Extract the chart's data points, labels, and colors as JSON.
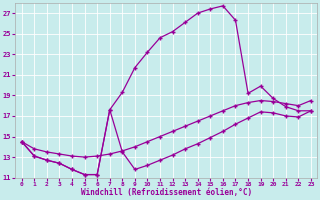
{
  "xlabel": "Windchill (Refroidissement éolien,°C)",
  "background_color": "#c8ecec",
  "line_color": "#990099",
  "xlim": [
    -0.5,
    23.5
  ],
  "ylim": [
    11,
    28
  ],
  "yticks": [
    11,
    13,
    15,
    17,
    19,
    21,
    23,
    25,
    27
  ],
  "xticks": [
    0,
    1,
    2,
    3,
    4,
    5,
    6,
    7,
    8,
    9,
    10,
    11,
    12,
    13,
    14,
    15,
    16,
    17,
    18,
    19,
    20,
    21,
    22,
    23
  ],
  "curve_peak_x": [
    0,
    1,
    2,
    3,
    4,
    5,
    6,
    7,
    8,
    9,
    10,
    11,
    12,
    13,
    14,
    15,
    16,
    17,
    18,
    19,
    20,
    21,
    22,
    23
  ],
  "curve_peak_y": [
    14.5,
    13.1,
    12.7,
    12.4,
    11.8,
    11.3,
    11.3,
    17.6,
    19.3,
    21.7,
    23.2,
    24.6,
    25.2,
    26.1,
    27.0,
    27.4,
    27.7,
    26.3,
    19.2,
    19.9,
    18.7,
    17.9,
    17.5,
    17.5
  ],
  "curve_upper_x": [
    0,
    1,
    2,
    3,
    4,
    5,
    6,
    7,
    8,
    9,
    10,
    11,
    12,
    13,
    14,
    15,
    16,
    17,
    18,
    19,
    20,
    21,
    22,
    23
  ],
  "curve_upper_y": [
    14.5,
    13.8,
    13.5,
    13.3,
    13.1,
    13.0,
    13.1,
    13.3,
    13.6,
    14.0,
    14.5,
    15.0,
    15.5,
    16.0,
    16.5,
    17.0,
    17.5,
    18.0,
    18.3,
    18.5,
    18.4,
    18.2,
    18.0,
    18.5
  ],
  "curve_lower_x": [
    0,
    1,
    2,
    3,
    4,
    5,
    6,
    7,
    8,
    9,
    10,
    11,
    12,
    13,
    14,
    15,
    16,
    17,
    18,
    19,
    20,
    21,
    22,
    23
  ],
  "curve_lower_y": [
    14.5,
    13.1,
    12.7,
    12.4,
    11.8,
    11.3,
    11.3,
    17.6,
    13.5,
    11.8,
    12.2,
    12.7,
    13.2,
    13.8,
    14.3,
    14.9,
    15.5,
    16.2,
    16.8,
    17.4,
    17.3,
    17.0,
    16.9,
    17.5
  ]
}
